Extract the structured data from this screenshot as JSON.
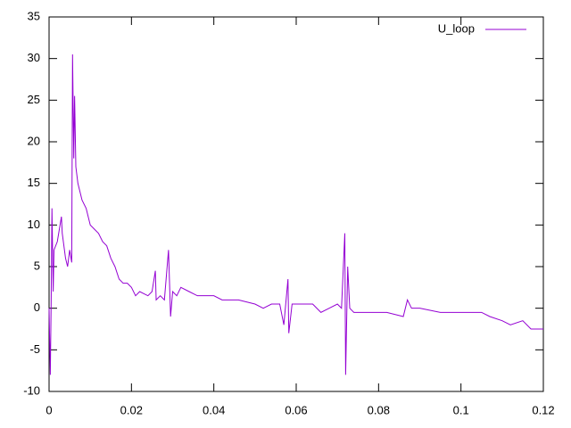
{
  "chart_data": {
    "type": "line",
    "x": [
      0,
      0.0003,
      0.0005,
      0.0007,
      0.001,
      0.0012,
      0.002,
      0.003,
      0.0032,
      0.004,
      0.0045,
      0.005,
      0.0055,
      0.0057,
      0.006,
      0.0062,
      0.0065,
      0.007,
      0.008,
      0.009,
      0.0095,
      0.01,
      0.011,
      0.012,
      0.013,
      0.014,
      0.015,
      0.016,
      0.017,
      0.018,
      0.019,
      0.02,
      0.021,
      0.022,
      0.024,
      0.025,
      0.0258,
      0.026,
      0.027,
      0.028,
      0.029,
      0.0295,
      0.03,
      0.031,
      0.032,
      0.034,
      0.036,
      0.04,
      0.042,
      0.046,
      0.05,
      0.052,
      0.054,
      0.056,
      0.057,
      0.058,
      0.0582,
      0.059,
      0.062,
      0.064,
      0.066,
      0.068,
      0.07,
      0.071,
      0.0718,
      0.072,
      0.0725,
      0.073,
      0.074,
      0.078,
      0.082,
      0.086,
      0.087,
      0.088,
      0.09,
      0.095,
      0.1,
      0.105,
      0.107,
      0.11,
      0.112,
      0.115,
      0.117,
      0.12
    ],
    "series": [
      {
        "name": "U_loop",
        "color": "#9400d3",
        "values": [
          0,
          -8,
          0.5,
          12,
          2,
          7,
          8,
          11,
          9,
          6,
          5,
          7,
          5.5,
          30.5,
          18,
          25.5,
          17,
          15,
          13,
          12,
          11,
          10,
          9.5,
          9,
          8,
          7.5,
          6,
          5,
          3.5,
          3,
          3,
          2.5,
          1.5,
          2,
          1.5,
          2,
          4.5,
          1,
          1.5,
          1,
          7,
          -1,
          2,
          1.5,
          2.5,
          2,
          1.5,
          1.5,
          1,
          1,
          0.5,
          0,
          0.5,
          0.5,
          -2,
          3.5,
          -3,
          0.5,
          0.5,
          0.5,
          -0.5,
          0,
          0.5,
          0,
          9,
          -8,
          5,
          0,
          -0.5,
          -0.5,
          -0.5,
          -1,
          1,
          0,
          0,
          -0.5,
          -0.5,
          -0.5,
          -1,
          -1.5,
          -2,
          -1.5,
          -2.5,
          -2.5
        ]
      }
    ],
    "xlim": [
      0,
      0.12
    ],
    "xticks": [
      0,
      0.02,
      0.04,
      0.06,
      0.08,
      0.1,
      0.12
    ],
    "ylim": [
      -10,
      35
    ],
    "yticks": [
      -10,
      -5,
      0,
      5,
      10,
      15,
      20,
      25,
      30,
      35
    ],
    "legend": "top-right"
  }
}
